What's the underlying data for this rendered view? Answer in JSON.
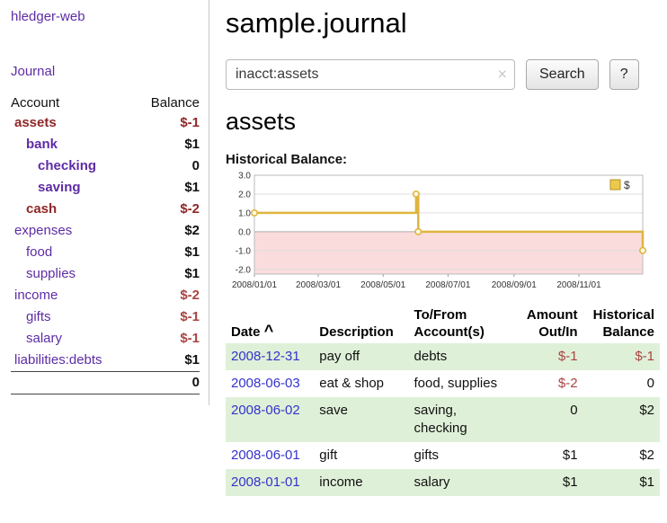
{
  "colors": {
    "link_purple": "#5e2ca5",
    "date_link_blue": "#3333cc",
    "negative_red": "#a94442",
    "negative_dark_red": "#8f2727",
    "row_stripe_green": "#dff0d8",
    "chart_line_gold": "#dfb53f",
    "chart_negative_fill_pink": "#fbdcdc"
  },
  "sidebar": {
    "app_link": "hledger-web",
    "journal_link": "Journal",
    "accounts_table": {
      "headers": {
        "account": "Account",
        "balance": "Balance"
      },
      "rows": [
        {
          "name": "assets",
          "balance": "$-1",
          "indent": 1,
          "bold": true,
          "negative": true
        },
        {
          "name": "bank",
          "balance": "$1",
          "indent": 2,
          "bold": true,
          "negative": false
        },
        {
          "name": "checking",
          "balance": "0",
          "indent": 3,
          "bold": true,
          "negative": false
        },
        {
          "name": "saving",
          "balance": "$1",
          "indent": 3,
          "bold": true,
          "negative": false
        },
        {
          "name": "cash",
          "balance": "$-2",
          "indent": 2,
          "bold": true,
          "negative": true
        },
        {
          "name": "expenses",
          "balance": "$2",
          "indent": 1,
          "bold": false,
          "negative": false
        },
        {
          "name": "food",
          "balance": "$1",
          "indent": 2,
          "bold": false,
          "negative": false
        },
        {
          "name": "supplies",
          "balance": "$1",
          "indent": 2,
          "bold": false,
          "negative": false
        },
        {
          "name": "income",
          "balance": "$-2",
          "indent": 1,
          "bold": false,
          "negative": true
        },
        {
          "name": "gifts",
          "balance": "$-1",
          "indent": 2,
          "bold": false,
          "negative": true
        },
        {
          "name": "salary",
          "balance": "$-1",
          "indent": 2,
          "bold": false,
          "negative": true
        },
        {
          "name": "liabilities:debts",
          "balance": "$1",
          "indent": 1,
          "bold": false,
          "negative": false
        }
      ],
      "total": "0"
    }
  },
  "main": {
    "title": "sample.journal",
    "search": {
      "value": "inacct:assets",
      "clear_icon": "×",
      "search_button": "Search",
      "help_button": "?"
    },
    "account_heading": "assets",
    "chart_label": "Historical Balance:",
    "register": {
      "headers": {
        "date": "Date",
        "sort_icon": "^",
        "description": "Description",
        "account": "To/From Account(s)",
        "amount": "Amount Out/In",
        "balance": "Historical Balance"
      },
      "rows": [
        {
          "date": "2008-12-31",
          "description": "pay off",
          "accounts": "debts",
          "amount": "$-1",
          "amount_negative": true,
          "balance": "$-1",
          "balance_negative": true,
          "striped": true
        },
        {
          "date": "2008-06-03",
          "description": "eat & shop",
          "accounts": "food, supplies",
          "amount": "$-2",
          "amount_negative": true,
          "balance": "0",
          "balance_negative": false,
          "striped": false
        },
        {
          "date": "2008-06-02",
          "description": "save",
          "accounts": "saving, checking",
          "amount": "0",
          "amount_negative": false,
          "balance": "$2",
          "balance_negative": false,
          "striped": true
        },
        {
          "date": "2008-06-01",
          "description": "gift",
          "accounts": "gifts",
          "amount": "$1",
          "amount_negative": false,
          "balance": "$2",
          "balance_negative": false,
          "striped": false
        },
        {
          "date": "2008-01-01",
          "description": "income",
          "accounts": "salary",
          "amount": "$1",
          "amount_negative": false,
          "balance": "$1",
          "balance_negative": false,
          "striped": true
        }
      ]
    }
  },
  "chart_data": {
    "type": "line",
    "title": "Historical Balance",
    "step": true,
    "legend": {
      "label": "$",
      "swatch_fill": "#ecc94d",
      "swatch_border": "#b39121",
      "position": "top-right"
    },
    "line_color": "#dfb53f",
    "negative_region_fill": "#fbdcdc",
    "grid": true,
    "ylim": [
      -2.25,
      3.0
    ],
    "y_ticks": [
      3.0,
      2.0,
      1.0,
      0.0,
      -1.0,
      -2.0
    ],
    "x_domain_days": [
      0,
      365
    ],
    "x_tick_days": [
      0,
      60,
      121,
      182,
      244,
      305
    ],
    "x_tick_labels": [
      "2008/01/01",
      "2008/03/01",
      "2008/05/01",
      "2008/07/01",
      "2008/09/01",
      "2008/11/01"
    ],
    "points": [
      {
        "date": "2008-01-01",
        "day": 0,
        "value": 1
      },
      {
        "date": "2008-06-01",
        "day": 152,
        "value": 2
      },
      {
        "date": "2008-06-03",
        "day": 154,
        "value": 0
      },
      {
        "date": "2008-12-31",
        "day": 365,
        "value": -1
      }
    ]
  }
}
